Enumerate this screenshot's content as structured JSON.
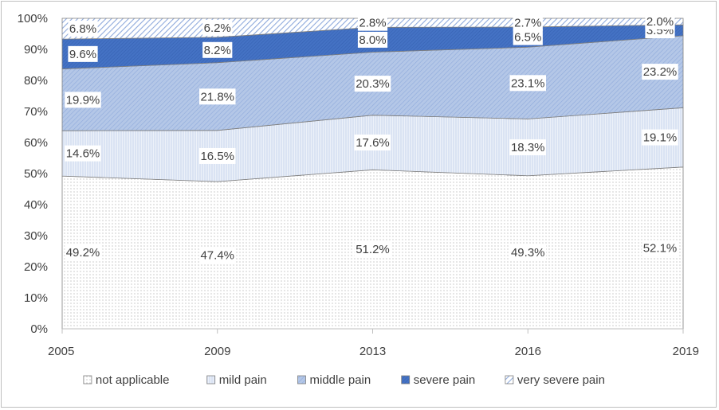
{
  "chart_data": {
    "type": "area",
    "stacked": true,
    "x": [
      "2005",
      "2009",
      "2013",
      "2016",
      "2019"
    ],
    "series": [
      {
        "name": "not applicable",
        "values": [
          49.2,
          47.4,
          51.2,
          49.3,
          52.1
        ],
        "labels": [
          "49.2%",
          "47.4%",
          "51.2%",
          "49.3%",
          "52.1%"
        ],
        "color": "#ffffff",
        "pattern": "dots"
      },
      {
        "name": "mild pain",
        "values": [
          14.6,
          16.5,
          17.6,
          18.3,
          19.1
        ],
        "labels": [
          "14.6%",
          "16.5%",
          "17.6%",
          "18.3%",
          "19.1%"
        ],
        "color": "#dae3f3",
        "pattern": "fine-lines"
      },
      {
        "name": "middle pain",
        "values": [
          19.9,
          21.8,
          20.3,
          23.1,
          23.2
        ],
        "labels": [
          "19.9%",
          "21.8%",
          "20.3%",
          "23.1%",
          "23.2%"
        ],
        "color": "#b4c7e7",
        "pattern": "diagonal"
      },
      {
        "name": "severe pain",
        "values": [
          9.6,
          8.2,
          8.0,
          6.5,
          3.5
        ],
        "labels": [
          "9.6%",
          "8.2%",
          "8.0%",
          "6.5%",
          "3.5%"
        ],
        "color": "#4472c4",
        "pattern": "dense-lines"
      },
      {
        "name": "very severe pain",
        "values": [
          6.8,
          6.2,
          2.8,
          2.7,
          2.0
        ],
        "labels": [
          "6.8%",
          "6.2%",
          "2.8%",
          "2.7%",
          "2.0%"
        ],
        "color": "#8faadc",
        "pattern": "diagonal-wide"
      }
    ],
    "y_ticks": [
      "0%",
      "10%",
      "20%",
      "30%",
      "40%",
      "50%",
      "60%",
      "70%",
      "80%",
      "90%",
      "100%"
    ],
    "ylim": [
      0,
      100
    ],
    "legend_position": "bottom",
    "grid": false
  }
}
